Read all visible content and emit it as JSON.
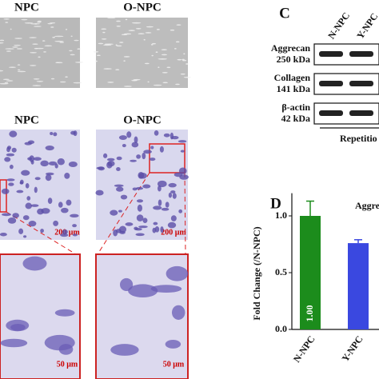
{
  "panel_a": {
    "labels": [
      "NPC",
      "O-NPC"
    ]
  },
  "panel_b": {
    "labels": [
      "NPC",
      "O-NPC"
    ],
    "scale_bars": [
      "200 μm",
      "200 μm"
    ]
  },
  "panel_zoom": {
    "scale_bars": [
      "50 μm",
      "50 μm"
    ]
  },
  "panel_c": {
    "letter": "C",
    "lanes": [
      "N-NPC",
      "Y-NPC"
    ],
    "bands": [
      {
        "name": "Aggrecan",
        "size": "250 kDa"
      },
      {
        "name": "Collagen",
        "size": "141 kDa"
      },
      {
        "name": "β-actin",
        "size": "42 kDa"
      }
    ],
    "footer": "Repetitio"
  },
  "panel_d": {
    "letter": "D"
  },
  "chart_data": {
    "type": "bar",
    "title": "Aggre",
    "ylabel": "Fold Change (/N-NPC)",
    "categories": [
      "N-NPC",
      "Y-NPC"
    ],
    "values": [
      1.0,
      0.76
    ],
    "errors": [
      0.13,
      0.03
    ],
    "value_labels": [
      "1.00",
      null
    ],
    "colors": [
      "#1c8c1c",
      "#3a48e0"
    ],
    "ylim": [
      0,
      1.2
    ],
    "yticks": [
      {
        "value": 0,
        "label": "0.0"
      },
      {
        "value": 0.5,
        "label": "0.5"
      },
      {
        "value": 1,
        "label": "1.0"
      }
    ]
  }
}
